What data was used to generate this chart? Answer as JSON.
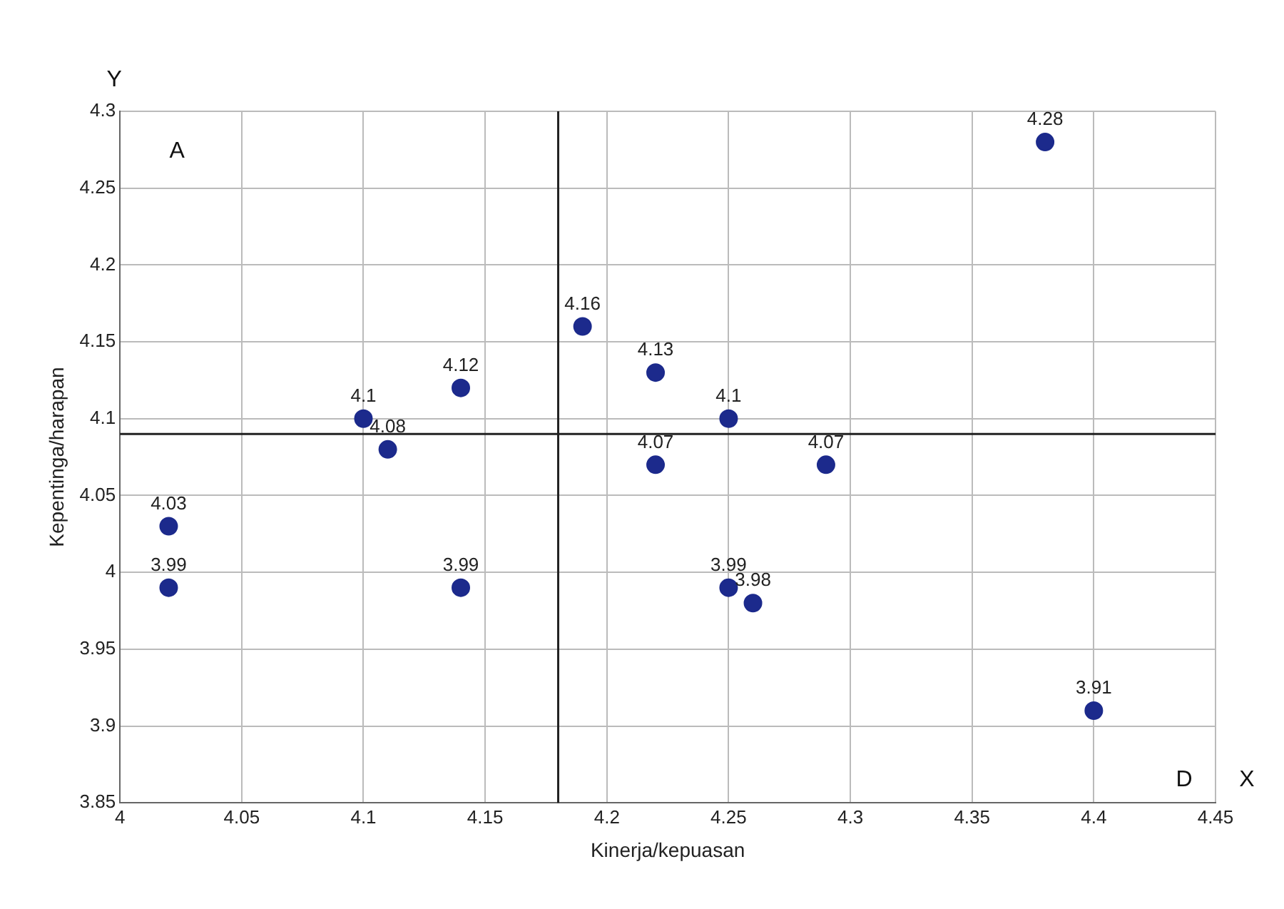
{
  "chart_data": {
    "type": "scatter",
    "xlabel": "Kinerja/kepuasan",
    "ylabel": "Kepentinga/harapan",
    "series": [
      {
        "color": "#1c2a8c",
        "x": [
          4.02,
          4.02,
          4.1,
          4.11,
          4.14,
          4.14,
          4.19,
          4.22,
          4.22,
          4.25,
          4.25,
          4.26,
          4.29,
          4.38,
          4.4
        ],
        "values": [
          4.03,
          3.99,
          4.1,
          4.08,
          4.12,
          3.99,
          4.16,
          4.13,
          4.07,
          4.1,
          3.99,
          3.98,
          4.07,
          4.28,
          3.91
        ]
      }
    ],
    "xlim": [
      4,
      4.45
    ],
    "xticks": [
      4,
      4.05,
      4.1,
      4.15,
      4.2,
      4.25,
      4.3,
      4.35,
      4.4,
      4.45
    ],
    "ylim": [
      3.85,
      4.3
    ],
    "yticks": [
      3.85,
      3.9,
      3.95,
      4,
      4.05,
      4.1,
      4.15,
      4.2,
      4.25,
      4.3
    ],
    "ref_lines": [
      {
        "axis": "x",
        "value": 4.18,
        "color": "#222222"
      },
      {
        "axis": "y",
        "value": 4.09,
        "color": "#222222"
      }
    ],
    "annotations": [
      "Y",
      "X",
      "A",
      "D"
    ],
    "data_labels": true,
    "grid": true,
    "legend": false,
    "marker": "circle"
  }
}
